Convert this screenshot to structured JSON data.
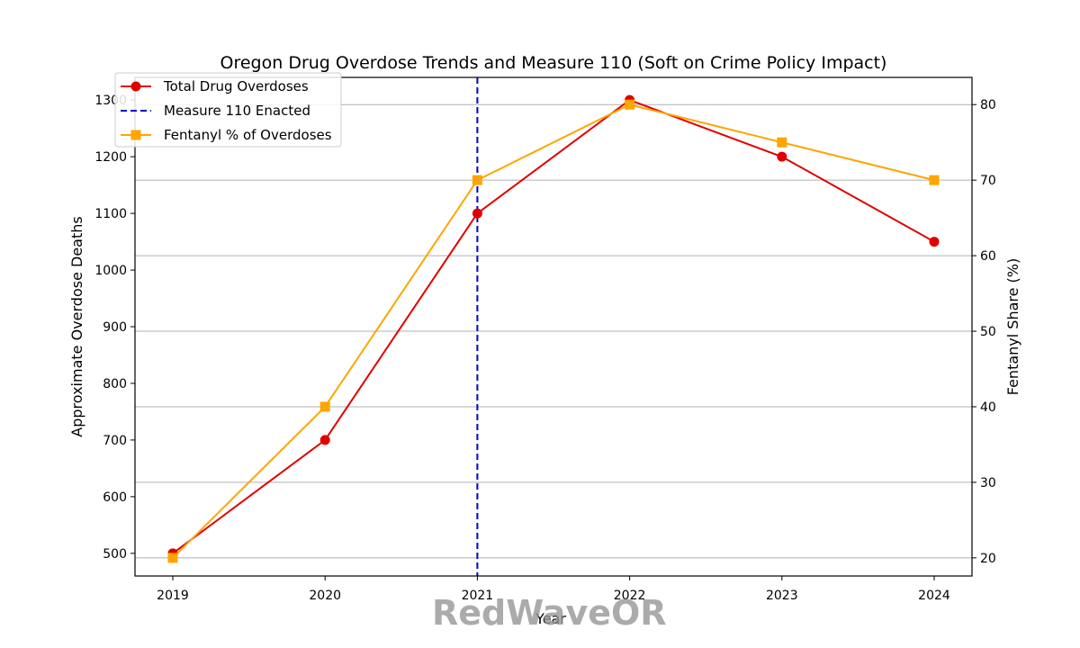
{
  "chart_data": {
    "type": "line",
    "title": "Oregon Drug Overdose Trends and Measure 110 (Soft on Crime Policy Impact)",
    "xlabel": "Year",
    "ylabel": "Approximate Overdose Deaths",
    "y2label": "Fentanyl Share (%)",
    "x": [
      2019,
      2020,
      2021,
      2022,
      2023,
      2024
    ],
    "ylim": [
      460,
      1340
    ],
    "y2lim": [
      17.6,
      83.6
    ],
    "yticks": [
      500,
      600,
      700,
      800,
      900,
      1000,
      1100,
      1200,
      1300
    ],
    "y2ticks": [
      20,
      30,
      40,
      50,
      60,
      70,
      80
    ],
    "grid": "horizontal (right axis)",
    "legend_position": "upper-left",
    "series": [
      {
        "name": "Total Drug Overdoses",
        "axis": "left",
        "color": "#e00000",
        "marker": "circle",
        "values": [
          500,
          700,
          1100,
          1300,
          1200,
          1050
        ]
      },
      {
        "name": "Fentanyl % of Overdoses",
        "axis": "right",
        "color": "#ffa500",
        "marker": "square",
        "values": [
          20,
          40,
          70,
          80,
          75,
          70
        ]
      }
    ],
    "vline": {
      "name": "Measure 110 Enacted",
      "x": 2021,
      "color": "#0000cc",
      "style": "dashed"
    },
    "legend": [
      "Total Drug Overdoses",
      "Measure 110 Enacted",
      "Fentanyl % of Overdoses"
    ]
  },
  "watermark": "RedWaveOR"
}
